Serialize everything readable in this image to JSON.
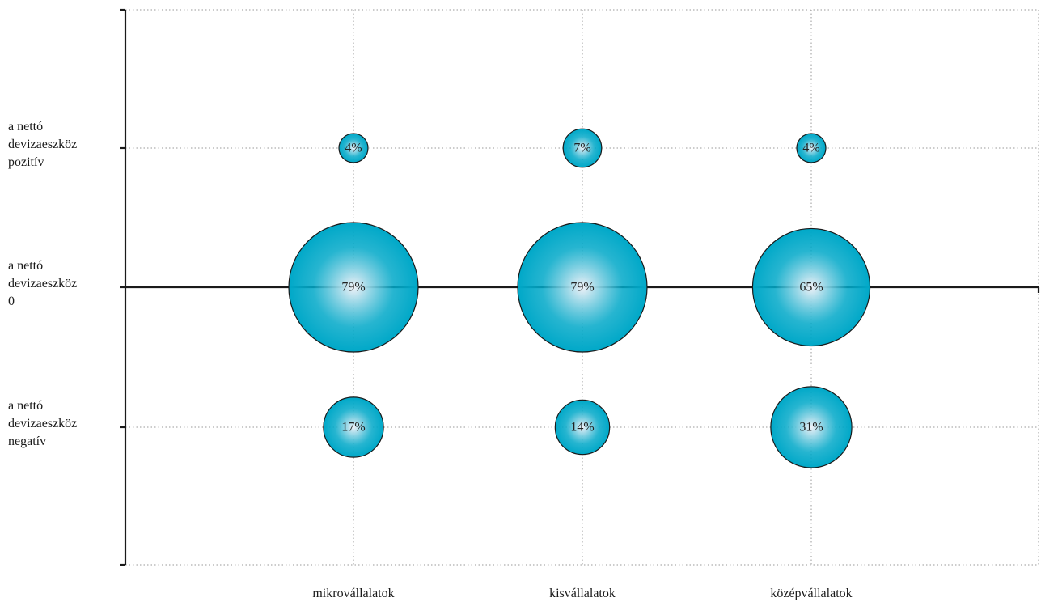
{
  "chart_data": {
    "type": "bubble",
    "title": "",
    "xlabel": "",
    "ylabel": "",
    "categories": [
      "mikrovállalatok",
      "kisvállalatok",
      "középvállalatok"
    ],
    "y_categories": [
      [
        "a nettó",
        "devizaeszköz",
        "pozitív"
      ],
      [
        "a nettó",
        "devizaeszköz",
        "0"
      ],
      [
        "a nettó",
        "devizaeszköz",
        "negatív"
      ]
    ],
    "values": [
      [
        4,
        7,
        4
      ],
      [
        79,
        79,
        65
      ],
      [
        17,
        14,
        31
      ]
    ],
    "value_labels": [
      [
        "4%",
        "7%",
        "4%"
      ],
      [
        "79%",
        "79%",
        "65%"
      ],
      [
        "17%",
        "14%",
        "31%"
      ]
    ],
    "unit": "%",
    "grid": true,
    "legend": "none",
    "colors": {
      "bubble_edge": "#00A8C8",
      "bubble_center": "#F2F2F8",
      "bubble_outline": "#1A1A1A",
      "axis": "#1A1A1A",
      "grid": "#9A9A9A"
    }
  }
}
